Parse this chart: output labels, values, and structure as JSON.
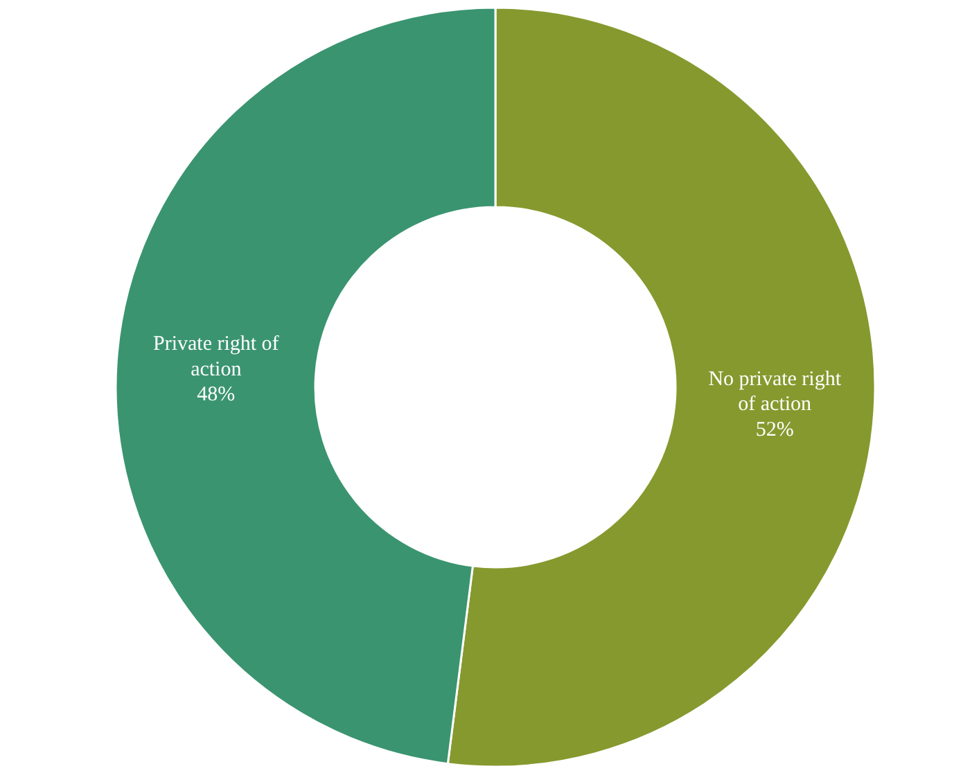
{
  "chart_data": {
    "type": "donut",
    "categories": [
      "No private right of action",
      "Private right of action"
    ],
    "values": [
      52,
      48
    ],
    "value_labels": [
      "52%",
      "48%"
    ],
    "colors": [
      "#86992e",
      "#3a9470"
    ]
  }
}
